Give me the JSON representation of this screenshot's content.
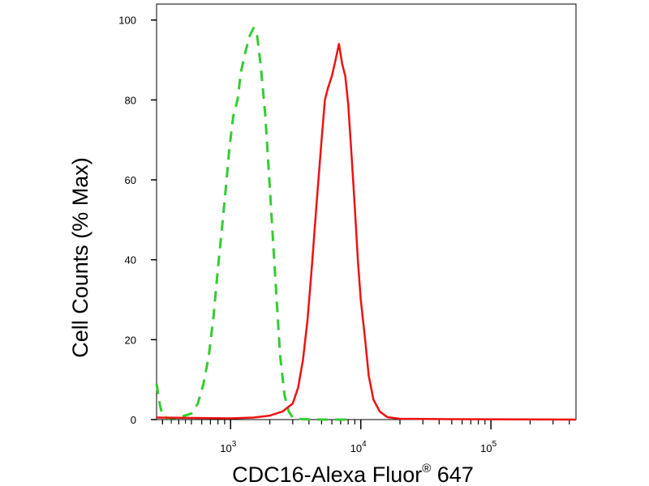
{
  "chart_data": {
    "type": "line",
    "title": "",
    "xlabel": "CDC16-Alexa Fluor",
    "xlabel_superscript": "®",
    "xlabel_suffix": " 647",
    "ylabel": "Cell Counts (% Max)",
    "xscale": "log",
    "xlim": [
      270,
      450000
    ],
    "ylim": [
      0,
      104
    ],
    "grid": false,
    "legend": "none",
    "y_ticks": [
      0,
      20,
      40,
      60,
      80,
      100
    ],
    "x_ticks": [
      {
        "value": 1000,
        "base": "10",
        "exp": "3"
      },
      {
        "value": 10000,
        "base": "10",
        "exp": "4"
      },
      {
        "value": 100000,
        "base": "10",
        "exp": "5"
      }
    ],
    "series": [
      {
        "color": "#33cc33",
        "dash": "dashed",
        "points": [
          [
            270,
            9
          ],
          [
            285,
            4
          ],
          [
            300,
            1
          ],
          [
            330,
            0.3
          ],
          [
            400,
            0.5
          ],
          [
            500,
            1.5
          ],
          [
            560,
            4
          ],
          [
            620,
            9
          ],
          [
            680,
            16
          ],
          [
            740,
            26
          ],
          [
            800,
            38
          ],
          [
            860,
            48
          ],
          [
            920,
            58
          ],
          [
            980,
            68
          ],
          [
            1050,
            76
          ],
          [
            1130,
            80
          ],
          [
            1200,
            87
          ],
          [
            1300,
            92
          ],
          [
            1400,
            96
          ],
          [
            1500,
            98
          ],
          [
            1600,
            96
          ],
          [
            1700,
            89
          ],
          [
            1850,
            76
          ],
          [
            2000,
            58
          ],
          [
            2200,
            36
          ],
          [
            2400,
            16
          ],
          [
            2600,
            6
          ],
          [
            2800,
            2
          ],
          [
            3000,
            0.5
          ],
          [
            3500,
            0.1
          ],
          [
            5000,
            0
          ],
          [
            8000,
            0
          ]
        ]
      },
      {
        "color": "#ee1111",
        "dash": "solid",
        "points": [
          [
            270,
            0.5
          ],
          [
            1000,
            0.3
          ],
          [
            1500,
            0.5
          ],
          [
            2000,
            1
          ],
          [
            2500,
            2
          ],
          [
            3000,
            4
          ],
          [
            3300,
            8
          ],
          [
            3600,
            15
          ],
          [
            3900,
            25
          ],
          [
            4200,
            38
          ],
          [
            4600,
            55
          ],
          [
            5000,
            70
          ],
          [
            5300,
            80
          ],
          [
            5600,
            83
          ],
          [
            6000,
            86
          ],
          [
            6400,
            90
          ],
          [
            6800,
            94
          ],
          [
            7200,
            89
          ],
          [
            7600,
            86
          ],
          [
            8000,
            79
          ],
          [
            8500,
            66
          ],
          [
            9000,
            53
          ],
          [
            9500,
            40
          ],
          [
            10000,
            30
          ],
          [
            10800,
            20
          ],
          [
            11500,
            11
          ],
          [
            12500,
            5
          ],
          [
            14000,
            2
          ],
          [
            16000,
            0.6
          ],
          [
            20000,
            0.2
          ],
          [
            50000,
            0.1
          ],
          [
            450000,
            0
          ]
        ]
      }
    ]
  }
}
